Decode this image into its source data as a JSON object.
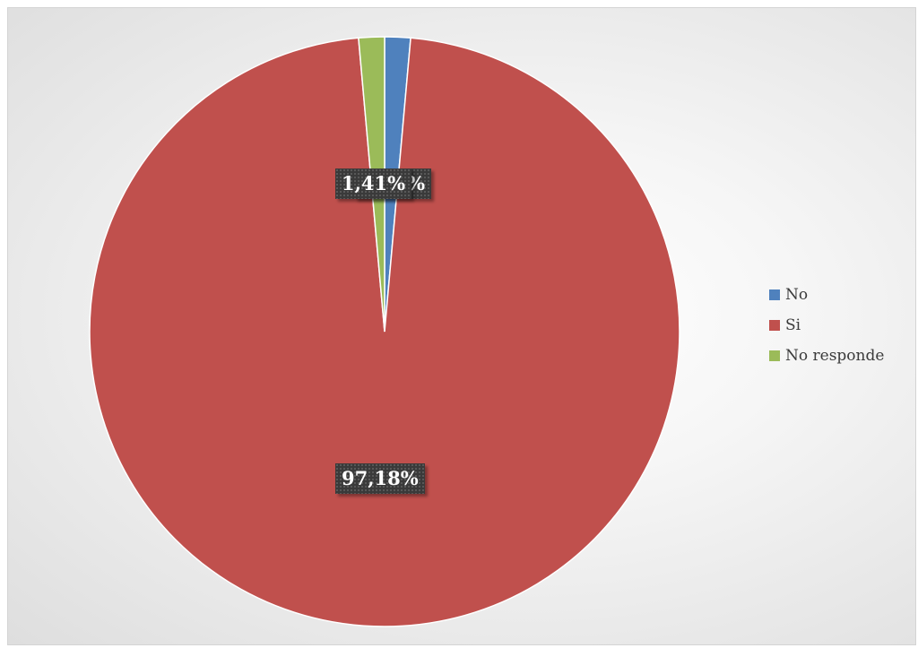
{
  "chart_data": {
    "type": "pie",
    "categories": [
      "No",
      "Si",
      "No responde"
    ],
    "values": [
      1.41,
      97.18,
      1.41
    ],
    "colors": [
      "#4f81bd",
      "#c0504d",
      "#9bbb59"
    ],
    "data_labels": [
      "1,41%",
      "97,18%",
      "1,41%"
    ],
    "legend": "right"
  }
}
